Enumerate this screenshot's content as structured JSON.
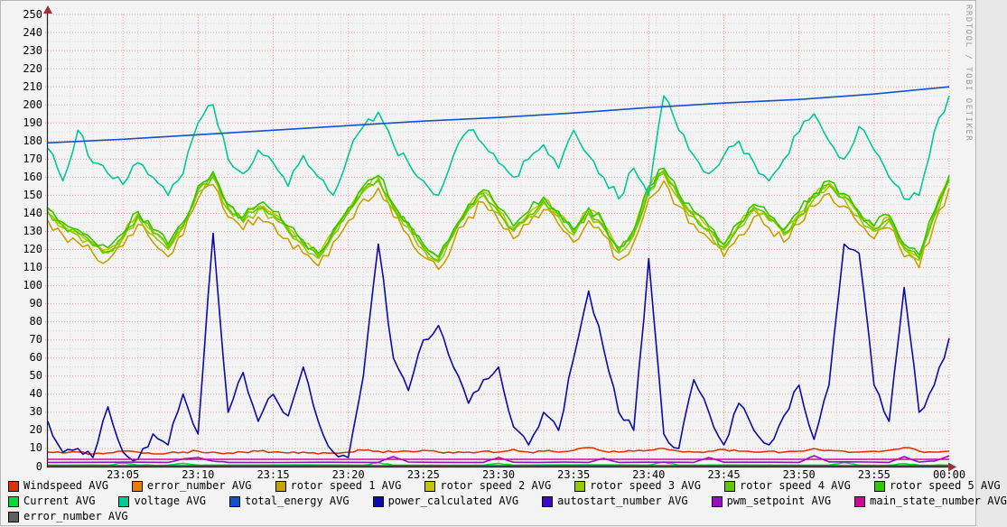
{
  "watermark": "RRDTOOL / TOBI OETIKER",
  "chart_data": {
    "type": "line",
    "title": "",
    "xlabel": "",
    "ylabel": "",
    "time_range": {
      "start": "23:00",
      "end": "00:00",
      "span_minutes": 60
    },
    "x_axis": {
      "label_step_minutes": 5,
      "labels": [
        "23:05",
        "23:10",
        "23:15",
        "23:20",
        "23:25",
        "23:30",
        "23:35",
        "23:40",
        "23:45",
        "23:50",
        "23:55",
        "00:00"
      ]
    },
    "y_axis": {
      "min": 0,
      "max": 250,
      "label_step": 10,
      "minor_step": 5
    },
    "grid": {
      "major_color": "#f0a2a2",
      "minor_color": "#d8d8d8",
      "major_x_every_min": 5,
      "minor_x_every_min": 1.5,
      "arrow_color": "#993333",
      "axis_color": "#222222"
    },
    "rotor_base": [
      140,
      132,
      128,
      122,
      118,
      126,
      138,
      128,
      120,
      132,
      152,
      160,
      142,
      135,
      142,
      138,
      130,
      122,
      115,
      128,
      140,
      152,
      158,
      142,
      132,
      120,
      113,
      128,
      142,
      150,
      140,
      130,
      138,
      146,
      138,
      128,
      140,
      132,
      118,
      128,
      152,
      162,
      148,
      138,
      130,
      120,
      132,
      142,
      136,
      128,
      138,
      148,
      155,
      148,
      138,
      130,
      136,
      120,
      114,
      138,
      158
    ],
    "series": [
      {
        "name": "Windspeed AVG",
        "color": "#dd3500",
        "dt": 1,
        "noise": 0.6,
        "values": [
          8,
          7.5,
          8,
          7,
          7.5,
          8.5,
          8,
          7,
          7.5,
          8,
          8.5,
          8,
          7.5,
          8,
          8.5,
          8,
          7.5,
          8,
          7,
          7.5,
          8,
          9,
          8.5,
          8,
          8.5,
          9,
          8,
          7.5,
          8,
          8.5,
          8,
          9.5,
          8,
          8.5,
          8,
          9,
          10.5,
          8.5,
          8,
          8.5,
          9,
          10,
          8.5,
          8,
          8.5,
          9.5,
          8.5,
          8,
          8.5,
          8,
          8.5,
          10,
          9,
          8.5,
          8,
          8.5,
          9,
          10.5,
          8.5,
          8,
          8.5
        ]
      },
      {
        "name": "error_number AVG",
        "color": "#e87d00",
        "noise": 0,
        "points": [
          [
            0,
            0.15
          ],
          [
            60,
            0.15
          ]
        ]
      },
      {
        "name": "rotor speed 1 AVG",
        "color": "#c9a200",
        "base": "rotor_base",
        "delta": -4,
        "noise": 3.5
      },
      {
        "name": "rotor speed 2 AVG",
        "color": "#c4c400",
        "base": "rotor_base",
        "delta": 2,
        "noise": 2.5
      },
      {
        "name": "rotor speed 3 AVG",
        "color": "#97c900",
        "base": "rotor_base",
        "delta": 0,
        "noise": 2.5
      },
      {
        "name": "rotor speed 4 AVG",
        "color": "#5fc900",
        "base": "rotor_base",
        "delta": 1,
        "noise": 2.5
      },
      {
        "name": "rotor speed 5 AVG",
        "color": "#2fc900",
        "base": "rotor_base",
        "delta": 3,
        "noise": 3
      },
      {
        "name": "Current AVG",
        "color": "#00dc37",
        "noise": 0.2,
        "points": [
          [
            0,
            0.7
          ],
          [
            4,
            0.7
          ],
          [
            5,
            2
          ],
          [
            6,
            0.7
          ],
          [
            8,
            0.7
          ],
          [
            9,
            1.8
          ],
          [
            10,
            0.7
          ],
          [
            21,
            0.7
          ],
          [
            22,
            2.2
          ],
          [
            23,
            0.7
          ],
          [
            29,
            0.7
          ],
          [
            30,
            1.8
          ],
          [
            31,
            0.7
          ],
          [
            40,
            0.7
          ],
          [
            41,
            2.5
          ],
          [
            42,
            0.7
          ],
          [
            52,
            0.7
          ],
          [
            53,
            2.2
          ],
          [
            54,
            0.7
          ],
          [
            56,
            0.7
          ],
          [
            57,
            1.6
          ],
          [
            58,
            0.7
          ],
          [
            60,
            0.7
          ]
        ]
      },
      {
        "name": "voltage AVG",
        "color": "#00ca96",
        "dt": 1,
        "noise": 3,
        "values": [
          176,
          158,
          186,
          168,
          162,
          156,
          168,
          160,
          150,
          162,
          190,
          200,
          170,
          162,
          175,
          168,
          155,
          172,
          160,
          150,
          172,
          188,
          196,
          178,
          168,
          158,
          150,
          172,
          186,
          178,
          168,
          160,
          170,
          178,
          165,
          186,
          172,
          160,
          148,
          165,
          150,
          205,
          186,
          172,
          162,
          172,
          180,
          168,
          158,
          170,
          185,
          195,
          180,
          170,
          188,
          175,
          160,
          148,
          150,
          185,
          205
        ]
      },
      {
        "name": "total_energy AVG",
        "color": "#1551c8",
        "noise": 0,
        "points": [
          [
            0,
            179
          ],
          [
            5,
            181
          ],
          [
            10,
            183.5
          ],
          [
            15,
            186
          ],
          [
            20,
            188.5
          ],
          [
            25,
            191
          ],
          [
            30,
            193
          ],
          [
            35,
            195.5
          ],
          [
            40,
            198.5
          ],
          [
            45,
            201
          ],
          [
            50,
            203
          ],
          [
            55,
            206
          ],
          [
            60,
            210
          ]
        ]
      },
      {
        "name": "power_calculated AVG",
        "color": "#0b0ba5",
        "dt": 1,
        "noise": 2.5,
        "values": [
          25,
          8,
          10,
          5,
          33,
          8,
          4,
          18,
          12,
          40,
          18,
          129,
          30,
          52,
          25,
          40,
          28,
          55,
          25,
          8,
          5,
          50,
          123,
          60,
          42,
          70,
          78,
          55,
          35,
          48,
          55,
          22,
          12,
          30,
          20,
          60,
          97,
          65,
          30,
          20,
          115,
          18,
          10,
          48,
          30,
          12,
          35,
          20,
          12,
          28,
          45,
          15,
          45,
          123,
          118,
          45,
          25,
          99,
          30,
          45,
          71
        ]
      },
      {
        "name": "autostart_number AVG",
        "color": "#3e06c8",
        "noise": 0,
        "points": [
          [
            0,
            0.5
          ],
          [
            60,
            0.5
          ]
        ]
      },
      {
        "name": "pwm_setpoint AVG",
        "color": "#9a0bc8",
        "noise": 0.15,
        "points": [
          [
            0,
            2.3
          ],
          [
            8,
            2.3
          ],
          [
            9,
            4.2
          ],
          [
            10,
            5
          ],
          [
            11,
            3
          ],
          [
            12,
            2.3
          ],
          [
            22,
            2.3
          ],
          [
            23,
            5.5
          ],
          [
            24,
            2.5
          ],
          [
            29,
            2.3
          ],
          [
            30,
            5
          ],
          [
            31,
            2.4
          ],
          [
            36,
            2.3
          ],
          [
            37,
            4.5
          ],
          [
            38,
            2.3
          ],
          [
            43,
            2.3
          ],
          [
            44,
            5
          ],
          [
            45,
            2.4
          ],
          [
            50,
            2.3
          ],
          [
            51,
            6
          ],
          [
            52,
            2.6
          ],
          [
            56,
            2.3
          ],
          [
            57,
            5.5
          ],
          [
            58,
            2.5
          ],
          [
            59,
            3
          ],
          [
            60,
            6
          ]
        ]
      },
      {
        "name": "main_state_number AVG",
        "color": "#cc0799",
        "noise": 0,
        "points": [
          [
            0,
            4
          ],
          [
            60,
            4
          ]
        ]
      },
      {
        "name": "error_number AVG",
        "color": "#5e5e5e",
        "noise": 0,
        "points": [
          [
            0,
            0.15
          ],
          [
            60,
            0.15
          ]
        ]
      }
    ],
    "legend_rows": [
      [
        0,
        1,
        2,
        3,
        4,
        5,
        6
      ],
      [
        7,
        8,
        9,
        10,
        11,
        12,
        13
      ],
      [
        14
      ]
    ],
    "legend_position": "bottom"
  }
}
